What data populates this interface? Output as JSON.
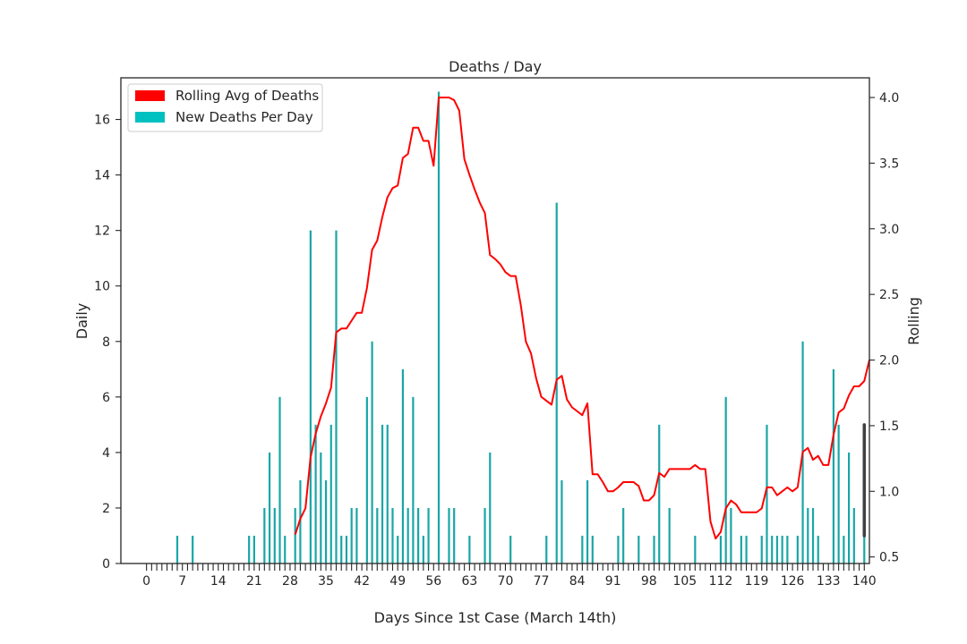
{
  "chart_data": {
    "type": "bar",
    "title": "Deaths / Day",
    "xlabel": "Days Since 1st Case (March 14th)",
    "ylabel": "Daily",
    "y2label": "Rolling",
    "xlim": [
      -5,
      141
    ],
    "ylim": [
      0,
      17.5
    ],
    "y2lim": [
      0.45,
      4.15
    ],
    "x_ticks": [
      0,
      7,
      14,
      21,
      28,
      35,
      42,
      49,
      56,
      63,
      70,
      77,
      84,
      91,
      98,
      105,
      112,
      119,
      126,
      133,
      140
    ],
    "y_ticks": [
      0,
      2,
      4,
      6,
      8,
      10,
      12,
      14,
      16
    ],
    "y2_ticks": [
      0.5,
      1.0,
      1.5,
      2.0,
      2.5,
      3.0,
      3.5,
      4.0
    ],
    "legend_position": "top-left",
    "grid": false,
    "colors": {
      "bars": "#1aa6a6",
      "rolling": "#ff0000",
      "legend_bars": "#00c0c0",
      "error_bar": "#404040"
    },
    "series": [
      {
        "name": "New Deaths Per Day",
        "type": "bar",
        "axis": "left",
        "points": [
          [
            6,
            1
          ],
          [
            9,
            1
          ],
          [
            20,
            1
          ],
          [
            21,
            1
          ],
          [
            23,
            2
          ],
          [
            24,
            4
          ],
          [
            25,
            2
          ],
          [
            26,
            6
          ],
          [
            27,
            1
          ],
          [
            29,
            2
          ],
          [
            30,
            3
          ],
          [
            32,
            12
          ],
          [
            33,
            5
          ],
          [
            34,
            4
          ],
          [
            35,
            3
          ],
          [
            36,
            5
          ],
          [
            37,
            12
          ],
          [
            38,
            1
          ],
          [
            39,
            1
          ],
          [
            40,
            2
          ],
          [
            41,
            2
          ],
          [
            43,
            6
          ],
          [
            44,
            8
          ],
          [
            45,
            2
          ],
          [
            46,
            5
          ],
          [
            47,
            5
          ],
          [
            48,
            2
          ],
          [
            49,
            1
          ],
          [
            50,
            7
          ],
          [
            51,
            2
          ],
          [
            52,
            6
          ],
          [
            53,
            2
          ],
          [
            54,
            1
          ],
          [
            55,
            2
          ],
          [
            57,
            17
          ],
          [
            59,
            2
          ],
          [
            60,
            2
          ],
          [
            63,
            1
          ],
          [
            66,
            2
          ],
          [
            67,
            4
          ],
          [
            71,
            1
          ],
          [
            78,
            1
          ],
          [
            80,
            13
          ],
          [
            81,
            3
          ],
          [
            85,
            1
          ],
          [
            86,
            3
          ],
          [
            87,
            1
          ],
          [
            92,
            1
          ],
          [
            93,
            2
          ],
          [
            96,
            1
          ],
          [
            99,
            1
          ],
          [
            100,
            5
          ],
          [
            102,
            2
          ],
          [
            107,
            1
          ],
          [
            112,
            1
          ],
          [
            113,
            6
          ],
          [
            114,
            2
          ],
          [
            116,
            1
          ],
          [
            117,
            1
          ],
          [
            120,
            1
          ],
          [
            121,
            5
          ],
          [
            122,
            1
          ],
          [
            123,
            1
          ],
          [
            124,
            1
          ],
          [
            125,
            1
          ],
          [
            127,
            1
          ],
          [
            128,
            8
          ],
          [
            129,
            2
          ],
          [
            130,
            2
          ],
          [
            131,
            1
          ],
          [
            134,
            7
          ],
          [
            135,
            5
          ],
          [
            136,
            1
          ],
          [
            137,
            4
          ],
          [
            138,
            2
          ],
          [
            140,
            1
          ]
        ]
      },
      {
        "name": "Rolling Avg of Deaths",
        "type": "line",
        "axis": "right",
        "points": [
          [
            29,
            0.67
          ],
          [
            30,
            0.79
          ],
          [
            31,
            0.87
          ],
          [
            32,
            1.26
          ],
          [
            33,
            1.44
          ],
          [
            34,
            1.57
          ],
          [
            35,
            1.67
          ],
          [
            36,
            1.79
          ],
          [
            37,
            2.21
          ],
          [
            38,
            2.24
          ],
          [
            39,
            2.24
          ],
          [
            40,
            2.3
          ],
          [
            41,
            2.36
          ],
          [
            42,
            2.36
          ],
          [
            43,
            2.55
          ],
          [
            44,
            2.84
          ],
          [
            45,
            2.91
          ],
          [
            46,
            3.09
          ],
          [
            47,
            3.24
          ],
          [
            48,
            3.31
          ],
          [
            49,
            3.33
          ],
          [
            50,
            3.54
          ],
          [
            51,
            3.57
          ],
          [
            52,
            3.77
          ],
          [
            53,
            3.77
          ],
          [
            54,
            3.67
          ],
          [
            55,
            3.67
          ],
          [
            56,
            3.48
          ],
          [
            57,
            4.0
          ],
          [
            58,
            4.0
          ],
          [
            59,
            4.0
          ],
          [
            60,
            3.98
          ],
          [
            61,
            3.9
          ],
          [
            62,
            3.53
          ],
          [
            63,
            3.41
          ],
          [
            64,
            3.3
          ],
          [
            65,
            3.2
          ],
          [
            66,
            3.12
          ],
          [
            67,
            2.8
          ],
          [
            68,
            2.77
          ],
          [
            69,
            2.73
          ],
          [
            70,
            2.67
          ],
          [
            71,
            2.64
          ],
          [
            72,
            2.64
          ],
          [
            73,
            2.42
          ],
          [
            74,
            2.14
          ],
          [
            75,
            2.05
          ],
          [
            76,
            1.86
          ],
          [
            77,
            1.72
          ],
          [
            78,
            1.69
          ],
          [
            79,
            1.66
          ],
          [
            80,
            1.85
          ],
          [
            81,
            1.88
          ],
          [
            82,
            1.7
          ],
          [
            83,
            1.64
          ],
          [
            84,
            1.61
          ],
          [
            85,
            1.58
          ],
          [
            86,
            1.67
          ],
          [
            87,
            1.13
          ],
          [
            88,
            1.13
          ],
          [
            89,
            1.07
          ],
          [
            90,
            1.0
          ],
          [
            91,
            1.0
          ],
          [
            92,
            1.03
          ],
          [
            93,
            1.07
          ],
          [
            94,
            1.07
          ],
          [
            95,
            1.07
          ],
          [
            96,
            1.04
          ],
          [
            97,
            0.93
          ],
          [
            98,
            0.93
          ],
          [
            99,
            0.97
          ],
          [
            100,
            1.14
          ],
          [
            101,
            1.11
          ],
          [
            102,
            1.17
          ],
          [
            103,
            1.17
          ],
          [
            104,
            1.17
          ],
          [
            105,
            1.17
          ],
          [
            106,
            1.17
          ],
          [
            107,
            1.2
          ],
          [
            108,
            1.17
          ],
          [
            109,
            1.17
          ],
          [
            110,
            0.77
          ],
          [
            111,
            0.64
          ],
          [
            112,
            0.69
          ],
          [
            113,
            0.87
          ],
          [
            114,
            0.93
          ],
          [
            115,
            0.9
          ],
          [
            116,
            0.84
          ],
          [
            117,
            0.84
          ],
          [
            118,
            0.84
          ],
          [
            119,
            0.84
          ],
          [
            120,
            0.87
          ],
          [
            121,
            1.03
          ],
          [
            122,
            1.03
          ],
          [
            123,
            0.97
          ],
          [
            124,
            1.0
          ],
          [
            125,
            1.03
          ],
          [
            126,
            1.0
          ],
          [
            127,
            1.03
          ],
          [
            128,
            1.3
          ],
          [
            129,
            1.33
          ],
          [
            130,
            1.24
          ],
          [
            131,
            1.27
          ],
          [
            132,
            1.2
          ],
          [
            133,
            1.2
          ],
          [
            134,
            1.43
          ],
          [
            135,
            1.6
          ],
          [
            136,
            1.63
          ],
          [
            137,
            1.73
          ],
          [
            138,
            1.8
          ],
          [
            139,
            1.8
          ],
          [
            140,
            1.84
          ],
          [
            141,
            2.0
          ]
        ]
      }
    ],
    "error_bar": {
      "x": 140,
      "y_low": 1,
      "y_high": 5
    }
  }
}
